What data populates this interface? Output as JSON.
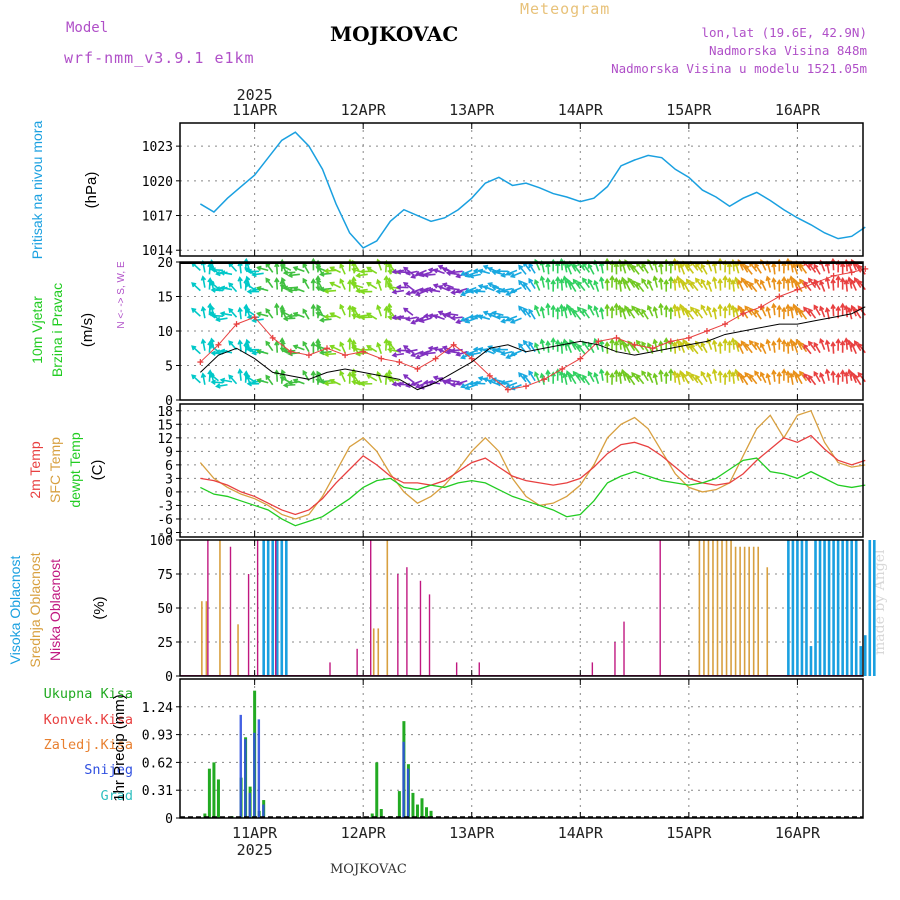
{
  "header": {
    "model_label": "Model",
    "model_name": "wrf-nmm_v3.9.1 e1km",
    "title": "MOJKOVAC",
    "meteogram": "Meteogram",
    "lonlat": "lon,lat (19.6E, 42.9N)",
    "altitude": "Nadmorska Visina 848m",
    "model_altitude": "Nadmorska Visina u modelu 1521.05m",
    "bottom_title": "MOJKOVAC",
    "credit": "made by Angel"
  },
  "colors": {
    "pressure": "#1aa0e0",
    "temp2m": "#e84040",
    "sfc_temp": "#d8a040",
    "dewpoint": "#22cc22",
    "high_cloud": "#1aa0e0",
    "mid_cloud": "#d8a040",
    "low_cloud": "#c01880",
    "total_precip": "#22aa22",
    "conv_precip": "#e84040",
    "freezing_precip": "#e88030",
    "snow": "#3050e0",
    "hail": "#30c0c0",
    "wind_gust": "#e84040",
    "wind_speed": "#000000"
  },
  "chart_data": [
    {
      "type": "line",
      "panel": "pressure",
      "ylabel_lines": [
        "Pritisak na nivou mora",
        "(hPa)"
      ],
      "year_label": "2025",
      "x_labels": [
        "11APR",
        "12APR",
        "13APR",
        "14APR",
        "15APR",
        "16APR"
      ],
      "ylim": [
        1013.5,
        1025
      ],
      "yticks": [
        1014,
        1017,
        1020,
        1023
      ],
      "x": [
        0,
        3,
        6,
        9,
        12,
        15,
        18,
        21,
        24,
        27,
        30,
        33,
        36,
        39,
        42,
        45,
        48,
        51,
        54,
        57,
        60,
        63,
        66,
        69,
        72,
        75,
        78,
        81,
        84,
        87,
        90,
        93,
        96,
        99,
        102,
        105,
        108,
        111,
        114,
        117,
        120,
        123,
        126,
        129,
        132,
        135,
        138,
        141,
        144,
        147
      ],
      "series": [
        {
          "name": "",
          "values": [
            1018,
            1017.3,
            1018.5,
            1019.5,
            1020.5,
            1022,
            1023.5,
            1024.2,
            1023,
            1021,
            1018,
            1015.5,
            1014.2,
            1014.8,
            1016.5,
            1017.5,
            1017,
            1016.5,
            1016.8,
            1017.5,
            1018.5,
            1019.8,
            1020.3,
            1019.6,
            1019.8,
            1019.4,
            1018.9,
            1018.6,
            1018.2,
            1018.5,
            1019.5,
            1021.3,
            1021.8,
            1022.2,
            1022,
            1021,
            1020.3,
            1019.2,
            1018.6,
            1017.8,
            1018.5,
            1019,
            1018.3,
            1017.5,
            1016.8,
            1016.2,
            1015.5,
            1015,
            1015.2,
            1016
          ]
        }
      ]
    },
    {
      "type": "line",
      "panel": "wind",
      "ylabel_lines": [
        "10m Vjetar",
        "Brzina i Pravac",
        "(m/s)"
      ],
      "compass": "N <- -> S, W, E",
      "ylim": [
        0,
        20
      ],
      "yticks": [
        0,
        5,
        10,
        15,
        20
      ],
      "x": [
        0,
        4,
        8,
        12,
        16,
        20,
        24,
        28,
        32,
        36,
        40,
        44,
        48,
        52,
        56,
        60,
        64,
        68,
        72,
        76,
        80,
        84,
        88,
        92,
        96,
        100,
        104,
        108,
        112,
        116,
        120,
        124,
        128,
        132,
        136,
        140,
        144,
        147
      ],
      "series": [
        {
          "name": "gust",
          "values": [
            5.5,
            8,
            11,
            12,
            9,
            7,
            6.5,
            7.5,
            6.5,
            7,
            6,
            5.5,
            4.5,
            6,
            8,
            6,
            3.5,
            1.5,
            2,
            3,
            4.5,
            6,
            8.5,
            9,
            8,
            7.5,
            8.5,
            9,
            10,
            11,
            12.5,
            13.5,
            15,
            16,
            17,
            18,
            18.5,
            19
          ]
        },
        {
          "name": "speed",
          "values": [
            4,
            6.5,
            7.5,
            6,
            4,
            3.5,
            3,
            4,
            4.5,
            4,
            3.5,
            3,
            1.5,
            2.5,
            4,
            5.5,
            7.5,
            8,
            7,
            7.5,
            8,
            8.5,
            8,
            7,
            6.5,
            7,
            7.5,
            8,
            8.5,
            9.5,
            10,
            10.5,
            11,
            11,
            11.5,
            12,
            12.5,
            13.5
          ]
        }
      ],
      "wind_rows": [
        18.5,
        16,
        12,
        7,
        2.5
      ],
      "wind_colors": [
        "#00c8c8",
        "#40c040",
        "#80d820",
        "#8030c0",
        "#18a8e0",
        "#30d060",
        "#70c820",
        "#c8c818",
        "#e89018",
        "#e84040"
      ]
    },
    {
      "type": "line",
      "panel": "temperature",
      "ylabel_lines": [
        "2m Temp",
        "SFC Temp",
        "dewpt Temp",
        "(C)"
      ],
      "ylim": [
        -10,
        19.5
      ],
      "yticks": [
        -9,
        -6,
        -3,
        0,
        3,
        6,
        9,
        12,
        15,
        18
      ],
      "x": [
        0,
        3,
        6,
        9,
        12,
        15,
        18,
        21,
        24,
        27,
        30,
        33,
        36,
        39,
        42,
        45,
        48,
        51,
        54,
        57,
        60,
        63,
        66,
        69,
        72,
        75,
        78,
        81,
        84,
        87,
        90,
        93,
        96,
        99,
        102,
        105,
        108,
        111,
        114,
        117,
        120,
        123,
        126,
        129,
        132,
        135,
        138,
        141,
        144,
        147
      ],
      "series": [
        {
          "name": "2m Temp",
          "values": [
            3,
            2.5,
            1.5,
            0,
            -1,
            -2.5,
            -4,
            -5,
            -4,
            -1.5,
            2,
            5,
            8,
            6,
            3.5,
            2,
            2,
            1.5,
            2.5,
            4.5,
            6.5,
            7.5,
            5.5,
            3.5,
            2.5,
            2,
            1.5,
            2,
            3,
            5.5,
            8.5,
            10.5,
            11,
            10,
            8,
            5.5,
            3,
            2,
            1.5,
            2,
            4,
            7,
            9.5,
            12,
            11,
            12.5,
            9.5,
            7,
            6,
            7
          ]
        },
        {
          "name": "SFC Temp",
          "values": [
            6.5,
            3,
            1,
            -0.5,
            -1.5,
            -3,
            -5,
            -6,
            -5,
            -1,
            4.5,
            10,
            12,
            9,
            4,
            0,
            -2.5,
            -1,
            1.5,
            5,
            9,
            12,
            9,
            3,
            -1,
            -3,
            -2.5,
            -1,
            1.5,
            6,
            12,
            15,
            16.5,
            14,
            9,
            4,
            1,
            0,
            0.5,
            2,
            8,
            14,
            17,
            12,
            17,
            18,
            11,
            6.5,
            5.5,
            6
          ]
        },
        {
          "name": "dewpt Temp",
          "values": [
            1,
            -0.5,
            -1,
            -2,
            -3,
            -4,
            -6,
            -7.5,
            -6.5,
            -5.5,
            -3.5,
            -1.5,
            1,
            2.5,
            3,
            1,
            0.5,
            1.5,
            1,
            2,
            2.5,
            2,
            0.5,
            -1,
            -2,
            -3,
            -4,
            -5.5,
            -5,
            -2,
            2,
            3.5,
            4.5,
            3.5,
            2.5,
            2,
            1.5,
            2,
            3,
            5,
            7,
            7.5,
            4.5,
            4,
            3,
            4.5,
            3,
            1.5,
            1,
            1.5
          ]
        }
      ]
    },
    {
      "type": "bar",
      "panel": "clouds",
      "ylabel_lines": [
        "Visoka Oblacnost",
        "Srednja Oblacnost",
        "Niska Oblacnost",
        "(%)"
      ],
      "ylim": [
        0,
        100
      ],
      "yticks": [
        0,
        25,
        50,
        75,
        100
      ],
      "bands": [
        {
          "name": "high",
          "ranges": [
            [
              14,
              20,
              100
            ],
            [
              130,
              150,
              100
            ]
          ]
        },
        {
          "name": "mid",
          "ranges": [
            [
              0,
              2,
              55
            ],
            [
              4,
              5,
              100
            ],
            [
              8,
              9,
              38
            ],
            [
              38,
              40,
              35
            ],
            [
              41,
              42,
              100
            ],
            [
              110,
              118,
              100
            ],
            [
              118,
              124,
              95
            ],
            [
              125,
              126,
              80
            ]
          ]
        },
        {
          "name": "low",
          "ranges": [
            [
              1,
              2,
              100
            ],
            [
              6,
              7,
              95
            ],
            [
              10,
              11,
              75
            ],
            [
              12,
              13,
              100
            ],
            [
              16,
              17,
              100
            ],
            [
              28,
              29,
              10
            ],
            [
              34,
              35,
              20
            ],
            [
              37,
              38,
              100
            ],
            [
              43,
              44,
              75
            ],
            [
              45,
              46,
              80
            ],
            [
              48,
              49,
              70
            ],
            [
              50,
              51,
              60
            ],
            [
              56,
              57,
              10
            ],
            [
              61,
              62,
              10
            ],
            [
              86,
              87,
              10
            ],
            [
              91,
              92,
              25
            ],
            [
              93,
              94,
              40
            ],
            [
              101,
              102,
              100
            ]
          ]
        }
      ]
    },
    {
      "type": "bar",
      "panel": "precip",
      "ylabel_lines": [
        "1hr Precip (mm)"
      ],
      "legend": [
        "Ukupna Kisa",
        "Konvek.Kisa",
        "Zaledj.Kisa",
        "Snijeg",
        "Grad"
      ],
      "ylim": [
        0,
        1.55
      ],
      "yticks": [
        0,
        0.31,
        0.62,
        0.93,
        1.24
      ],
      "x_labels": [
        "11APR",
        "12APR",
        "13APR",
        "14APR",
        "15APR",
        "16APR"
      ],
      "year_label": "2025",
      "bars": [
        {
          "hour": 1,
          "total": 0.05,
          "snow": 0
        },
        {
          "hour": 2,
          "total": 0.55,
          "snow": 0
        },
        {
          "hour": 3,
          "total": 0.62,
          "snow": 0
        },
        {
          "hour": 4,
          "total": 0.43,
          "snow": 0
        },
        {
          "hour": 7,
          "total": 0.02,
          "snow": 0
        },
        {
          "hour": 9,
          "total": 0.45,
          "snow": 1.15
        },
        {
          "hour": 10,
          "total": 0.9,
          "snow": 0.88
        },
        {
          "hour": 11,
          "total": 0.35,
          "snow": 0.28
        },
        {
          "hour": 12,
          "total": 1.42,
          "snow": 0.95
        },
        {
          "hour": 13,
          "total": 0.08,
          "snow": 1.1
        },
        {
          "hour": 14,
          "total": 0.2,
          "snow": 0.15
        },
        {
          "hour": 38,
          "total": 0.05,
          "snow": 0
        },
        {
          "hour": 39,
          "total": 0.62,
          "snow": 0
        },
        {
          "hour": 40,
          "total": 0.1,
          "snow": 0
        },
        {
          "hour": 42,
          "total": 0.02,
          "snow": 0
        },
        {
          "hour": 44,
          "total": 0.3,
          "snow": 0
        },
        {
          "hour": 45,
          "total": 1.08,
          "snow": 0.85
        },
        {
          "hour": 46,
          "total": 0.6,
          "snow": 0.55
        },
        {
          "hour": 47,
          "total": 0.28,
          "snow": 0
        },
        {
          "hour": 48,
          "total": 0.15,
          "snow": 0
        },
        {
          "hour": 49,
          "total": 0.22,
          "snow": 0
        },
        {
          "hour": 50,
          "total": 0.12,
          "snow": 0
        },
        {
          "hour": 51,
          "total": 0.08,
          "snow": 0
        }
      ]
    }
  ]
}
